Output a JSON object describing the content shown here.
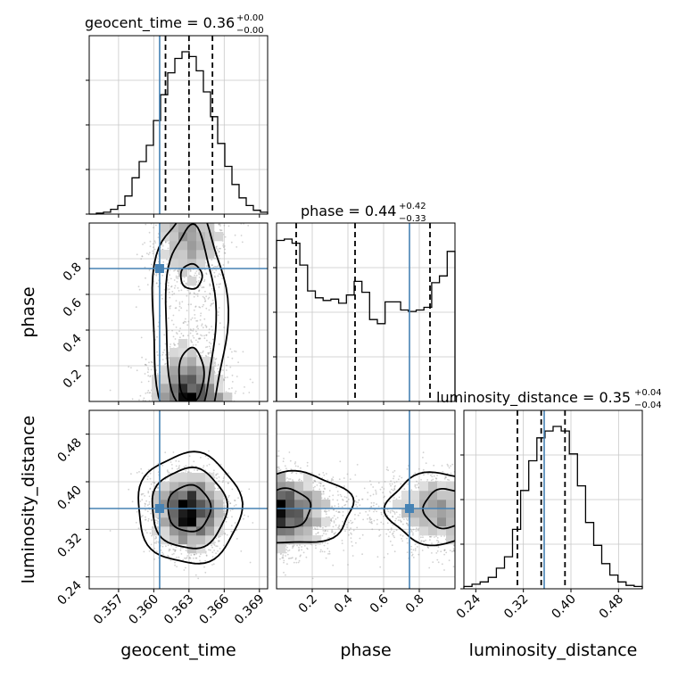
{
  "chart_data": {
    "type": "corner",
    "truth_color": "#4682b4",
    "parameters": [
      {
        "name": "geocent_time",
        "label": "geocent_time",
        "range": [
          0.3545,
          0.3697
        ],
        "ticks": [
          0.357,
          0.36,
          0.363,
          0.366,
          0.369
        ],
        "tick_labels": [
          "0.357",
          "0.360",
          "0.363",
          "0.366",
          "0.369"
        ],
        "truth": 0.3605,
        "quantiles": [
          0.361,
          0.363,
          0.365
        ]
      },
      {
        "name": "phase",
        "label": "phase",
        "range": [
          0.0,
          1.0
        ],
        "ticks": [
          0.2,
          0.4,
          0.6,
          0.8
        ],
        "tick_labels": [
          "0.2",
          "0.4",
          "0.6",
          "0.8"
        ],
        "truth": 0.745,
        "quantiles": [
          0.11,
          0.44,
          0.86
        ]
      },
      {
        "name": "luminosity_distance",
        "label": "luminosity_distance",
        "range": [
          0.22,
          0.52
        ],
        "ticks": [
          0.24,
          0.32,
          0.4,
          0.48
        ],
        "tick_labels": [
          "0.24",
          "0.32",
          "0.40",
          "0.48"
        ],
        "truth": 0.355,
        "quantiles": [
          0.31,
          0.35,
          0.39
        ]
      }
    ],
    "titles": [
      {
        "param": "geocent_time",
        "text": "geocent_time = 0.36",
        "plus": "+0.00",
        "minus": "−0.00"
      },
      {
        "param": "phase",
        "text": "phase = 0.44",
        "plus": "+0.42",
        "minus": "−0.33"
      },
      {
        "param": "luminosity_distance",
        "text": "luminosity_distance = 0.35",
        "plus": "+0.04",
        "minus": "−0.04"
      }
    ],
    "histograms": [
      {
        "param": "geocent_time",
        "values": [
          0,
          1,
          2,
          5,
          9,
          19,
          38,
          55,
          72,
          98,
          125,
          148,
          163,
          170,
          165,
          150,
          128,
          102,
          74,
          50,
          31,
          17,
          9,
          4,
          2
        ]
      },
      {
        "param": "phase",
        "values": [
          118,
          119,
          116,
          100,
          81,
          76,
          74,
          75,
          72,
          78,
          88,
          80,
          60,
          57,
          73,
          73,
          67,
          66,
          67,
          69,
          87,
          92,
          110
        ]
      },
      {
        "param": "luminosity_distance",
        "values": [
          2,
          4,
          6,
          10,
          18,
          28,
          52,
          86,
          112,
          132,
          138,
          142,
          138,
          118,
          90,
          58,
          38,
          22,
          12,
          6,
          3,
          2
        ]
      }
    ],
    "grid": true
  }
}
